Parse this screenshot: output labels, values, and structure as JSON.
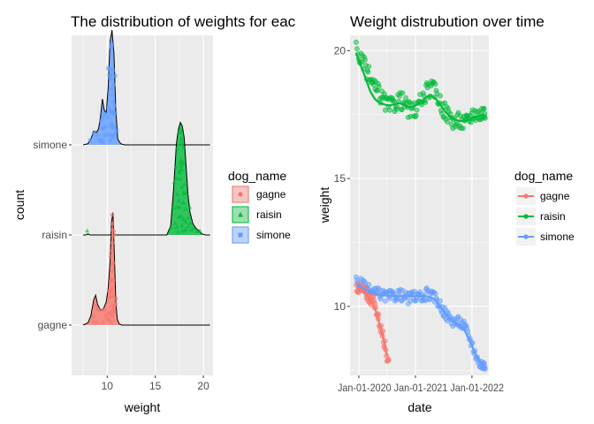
{
  "colors": {
    "gagne": "#F8766D",
    "raisin": "#00BA38",
    "simone": "#619CFF",
    "panel_bg": "#EBEBEB",
    "grid": "#FFFFFF",
    "axis_text": "#4D4D4D",
    "text": "#000000"
  },
  "chart_data": [
    {
      "type": "ridgeline-density",
      "title": "The distribution of weights for eac",
      "xlabel": "weight",
      "ylabel": "count",
      "xlim": [
        6.3,
        21
      ],
      "x_ticks": [
        10,
        15,
        20
      ],
      "x_tick_labels": [
        "10",
        "15",
        "20"
      ],
      "categories": [
        "gagne",
        "raisin",
        "simone"
      ],
      "grid": true,
      "legend": {
        "title": "dog_name",
        "position": "right",
        "entries": [
          "gagne",
          "raisin",
          "simone"
        ],
        "shapes": [
          "circle",
          "triangle",
          "square"
        ]
      },
      "series": [
        {
          "name": "gagne",
          "x": [
            7.5,
            8.0,
            8.3,
            8.6,
            8.8,
            9.0,
            9.3,
            9.6,
            9.9,
            10.1,
            10.3,
            10.45,
            10.6,
            10.75,
            10.9,
            11.05,
            11.25,
            11.5,
            12.0,
            20.7
          ],
          "density": [
            0.0,
            0.02,
            0.08,
            0.22,
            0.26,
            0.18,
            0.13,
            0.14,
            0.2,
            0.32,
            0.55,
            0.9,
            0.98,
            0.6,
            0.2,
            0.05,
            0.01,
            0.0,
            0.0,
            0.0
          ]
        },
        {
          "name": "raisin",
          "x": [
            7.5,
            7.8,
            8.0,
            8.2,
            8.5,
            16.2,
            16.6,
            16.9,
            17.2,
            17.4,
            17.6,
            17.8,
            18.0,
            18.2,
            18.4,
            18.6,
            18.9,
            19.2,
            19.5,
            19.8,
            20.2,
            20.7
          ],
          "density": [
            0.0,
            0.0,
            0.01,
            0.0,
            0.0,
            0.0,
            0.08,
            0.4,
            0.8,
            0.92,
            0.98,
            0.95,
            0.85,
            0.6,
            0.35,
            0.2,
            0.1,
            0.06,
            0.04,
            0.01,
            0.0,
            0.0
          ]
        },
        {
          "name": "simone",
          "x": [
            7.5,
            8.0,
            8.3,
            8.6,
            8.9,
            9.1,
            9.3,
            9.5,
            9.7,
            9.9,
            10.1,
            10.3,
            10.5,
            10.7,
            10.9,
            11.1,
            11.4,
            11.8,
            20.7
          ],
          "density": [
            0.0,
            0.01,
            0.05,
            0.12,
            0.11,
            0.14,
            0.24,
            0.4,
            0.3,
            0.28,
            0.5,
            0.9,
            1.0,
            0.8,
            0.3,
            0.05,
            0.01,
            0.0,
            0.0
          ]
        }
      ],
      "jitter_points": [
        {
          "name": "gagne",
          "weights": [
            8.5,
            8.7,
            8.9,
            9.1,
            9.4,
            9.7,
            9.9,
            10.0,
            10.1,
            10.2,
            10.25,
            10.3,
            10.35,
            10.4,
            10.45,
            10.5,
            10.55,
            10.6,
            10.65,
            10.7,
            10.75,
            10.8,
            10.85,
            10.9,
            10.3,
            10.4,
            10.5,
            10.6,
            10.7,
            10.45,
            10.55,
            10.65,
            10.35,
            10.5,
            10.6,
            10.4,
            10.7,
            10.5,
            10.55,
            10.6,
            10.45,
            10.5,
            8.6,
            9.0,
            9.5,
            10.0,
            10.2
          ]
        },
        {
          "name": "raisin",
          "weights": [
            8.0,
            16.6,
            16.8,
            17.0,
            17.1,
            17.2,
            17.3,
            17.4,
            17.45,
            17.5,
            17.55,
            17.6,
            17.65,
            17.7,
            17.75,
            17.8,
            17.85,
            17.9,
            17.95,
            18.0,
            18.1,
            18.2,
            18.3,
            18.4,
            18.5,
            18.6,
            18.8,
            19.0,
            19.3,
            19.6,
            17.3,
            17.5,
            17.7,
            17.9,
            18.1,
            17.4,
            17.6,
            17.8,
            18.0,
            17.2,
            17.5,
            17.7,
            17.9,
            17.6,
            17.8,
            18.2,
            18.4,
            17.0,
            17.3,
            17.6,
            17.8,
            18.0,
            17.5,
            17.7
          ]
        },
        {
          "name": "simone",
          "weights": [
            8.3,
            8.6,
            8.9,
            9.1,
            9.3,
            9.4,
            9.5,
            9.6,
            9.7,
            9.8,
            9.9,
            10.0,
            10.1,
            10.2,
            10.25,
            10.3,
            10.35,
            10.4,
            10.45,
            10.5,
            10.55,
            10.6,
            10.65,
            10.7,
            10.75,
            10.8,
            10.9,
            11.0,
            10.3,
            10.4,
            10.5,
            10.6,
            10.7,
            10.4,
            10.5,
            10.6,
            10.45,
            10.55,
            10.5,
            10.35,
            10.65,
            9.5,
            9.6,
            10.1,
            10.2,
            10.5,
            10.6
          ]
        }
      ]
    },
    {
      "type": "scatter",
      "title": "Weight distrubution over time",
      "xlabel": "date",
      "ylabel": "weight",
      "ylim": [
        7.3,
        20.6
      ],
      "y_ticks": [
        10,
        15,
        20
      ],
      "y_tick_labels": [
        "10",
        "15",
        "20"
      ],
      "x_tick_labels": [
        "Jan-01-2020",
        "Jan-01-2021",
        "Jan-01-2022"
      ],
      "x_tick_labels_raw": "Jan-01-2020 Jan-01-2021 Jan-01-2022",
      "grid": true,
      "legend": {
        "title": "dog_name",
        "position": "right",
        "entries": [
          "gagne",
          "raisin",
          "simone"
        ]
      },
      "series": [
        {
          "name": "raisin",
          "x": [
            "2019-12-15",
            "2020-01-15",
            "2020-02-15",
            "2020-03-15",
            "2020-04-15",
            "2020-05-15",
            "2020-06-15",
            "2020-07-15",
            "2020-08-15",
            "2020-09-15",
            "2020-10-15",
            "2020-11-15",
            "2020-12-15",
            "2021-01-15",
            "2021-02-15",
            "2021-03-15",
            "2021-04-15",
            "2021-05-15",
            "2021-06-15",
            "2021-07-15",
            "2021-08-15",
            "2021-09-15",
            "2021-10-15",
            "2021-11-15",
            "2021-12-15",
            "2022-01-15",
            "2022-02-15",
            "2022-03-15"
          ],
          "y": [
            20.1,
            19.6,
            19.3,
            18.9,
            18.5,
            18.3,
            18.0,
            17.8,
            17.9,
            18.1,
            18.0,
            17.7,
            17.6,
            17.8,
            18.1,
            18.4,
            18.5,
            18.4,
            17.9,
            17.6,
            17.4,
            17.2,
            17.3,
            17.1,
            17.4,
            17.6,
            17.5,
            17.6
          ],
          "smooth_y": [
            19.9,
            19.4,
            18.9,
            18.4,
            18.1,
            17.95,
            17.9,
            17.85,
            17.9,
            17.95,
            17.9,
            17.8,
            17.8,
            17.9,
            18.05,
            18.2,
            18.25,
            18.1,
            17.85,
            17.6,
            17.4,
            17.3,
            17.25,
            17.25,
            17.3,
            17.4,
            17.45,
            17.5
          ]
        },
        {
          "name": "simone",
          "x": [
            "2019-12-15",
            "2020-01-15",
            "2020-02-15",
            "2020-03-15",
            "2020-04-15",
            "2020-05-15",
            "2020-06-15",
            "2020-07-15",
            "2020-08-15",
            "2020-09-15",
            "2020-10-15",
            "2020-11-15",
            "2020-12-15",
            "2021-01-15",
            "2021-02-15",
            "2021-03-15",
            "2021-04-15",
            "2021-05-15",
            "2021-06-15",
            "2021-07-15",
            "2021-08-15",
            "2021-09-15",
            "2021-10-15",
            "2021-11-15",
            "2021-12-15",
            "2022-01-15",
            "2022-02-15",
            "2022-03-15"
          ],
          "y": [
            11.0,
            10.9,
            10.7,
            10.6,
            10.5,
            10.5,
            10.4,
            10.4,
            10.4,
            10.5,
            10.4,
            10.3,
            10.4,
            10.4,
            10.3,
            10.5,
            10.4,
            10.3,
            10.0,
            9.7,
            9.5,
            9.4,
            9.4,
            9.2,
            8.8,
            8.3,
            7.8,
            7.7
          ],
          "smooth_y": [
            10.85,
            10.75,
            10.65,
            10.55,
            10.5,
            10.45,
            10.45,
            10.4,
            10.4,
            10.4,
            10.4,
            10.4,
            10.4,
            10.4,
            10.4,
            10.4,
            10.35,
            10.2,
            9.95,
            9.7,
            9.5,
            9.35,
            9.25,
            9.05,
            8.7,
            8.25,
            7.9,
            7.7
          ]
        },
        {
          "name": "gagne",
          "x": [
            "2019-12-15",
            "2020-01-01",
            "2020-01-15",
            "2020-02-01",
            "2020-02-15",
            "2020-03-01",
            "2020-03-15",
            "2020-04-01",
            "2020-04-15",
            "2020-05-01",
            "2020-05-15",
            "2020-06-01",
            "2020-06-15",
            "2020-07-01"
          ],
          "y": [
            10.8,
            10.7,
            10.6,
            10.6,
            10.5,
            10.4,
            10.3,
            10.2,
            10.0,
            9.7,
            9.3,
            8.9,
            8.6,
            8.0
          ],
          "smooth_y": [
            10.75,
            10.7,
            10.6,
            10.55,
            10.45,
            10.35,
            10.25,
            10.1,
            9.9,
            9.6,
            9.25,
            8.9,
            8.55,
            8.05
          ]
        }
      ]
    }
  ]
}
